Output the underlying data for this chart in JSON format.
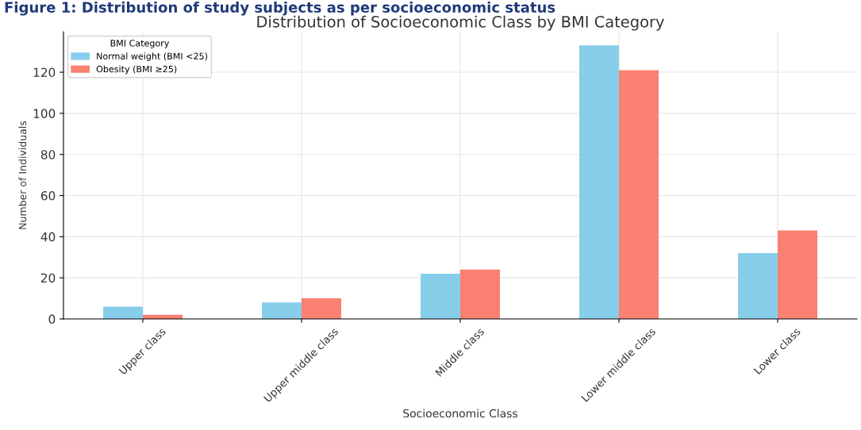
{
  "chart_data": {
    "type": "bar",
    "title": "Distribution of Socioeconomic Class by BMI Category",
    "annotations": [
      "Figure 1: Distribution of study subjects as per socioeconomic status"
    ],
    "xlabel": "Socioeconomic Class",
    "ylabel": "Number of Individuals",
    "categories": [
      "Upper class",
      "Upper middle class",
      "Middle class",
      "Lower middle class",
      "Lower class"
    ],
    "series": [
      {
        "name": "Normal weight (BMI <25)",
        "color": "#87ceeb",
        "values": [
          6,
          8,
          22,
          133,
          32
        ]
      },
      {
        "name": "Obesity (BMI ≥25)",
        "color": "#fa8072",
        "values": [
          2,
          10,
          24,
          121,
          43
        ]
      }
    ],
    "legend_title": "BMI Category",
    "legend": "top left",
    "ylim": [
      0,
      139.7
    ],
    "yticks": [
      0,
      20,
      40,
      60,
      80,
      100,
      120
    ],
    "grid": true
  }
}
